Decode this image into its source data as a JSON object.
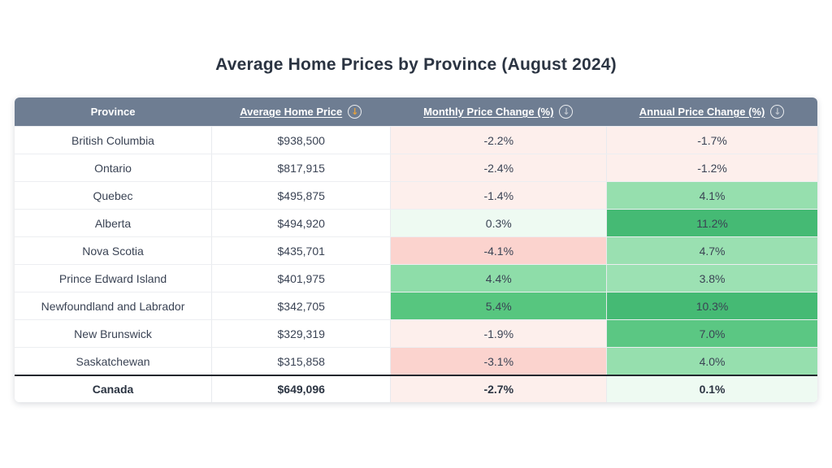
{
  "title": "Average Home Prices by Province (August 2024)",
  "table": {
    "columns": [
      {
        "label": "Province",
        "sortable": false
      },
      {
        "label": "Average Home Price",
        "sortable": true,
        "sort_icon": "circled-down-arrow",
        "sort_active": true,
        "sort_arrow_color": "#e7a23c"
      },
      {
        "label": "Monthly Price Change (%)",
        "sortable": true,
        "sort_icon": "circled-down-arrow",
        "sort_active": false
      },
      {
        "label": "Annual Price Change (%)",
        "sortable": true,
        "sort_icon": "circled-down-arrow",
        "sort_active": false
      }
    ],
    "sort_icon_glyph": "↓",
    "rows": [
      {
        "province": "British Columbia",
        "price": "$938,500",
        "monthly": "-2.2%",
        "annual": "-1.7%",
        "monthly_bg": "#fdefec",
        "annual_bg": "#fdefec"
      },
      {
        "province": "Ontario",
        "price": "$817,915",
        "monthly": "-2.4%",
        "annual": "-1.2%",
        "monthly_bg": "#fdefec",
        "annual_bg": "#fdefec"
      },
      {
        "province": "Quebec",
        "price": "$495,875",
        "monthly": "-1.4%",
        "annual": "4.1%",
        "monthly_bg": "#fdefec",
        "annual_bg": "#96dfae"
      },
      {
        "province": "Alberta",
        "price": "$494,920",
        "monthly": "0.3%",
        "annual": "11.2%",
        "monthly_bg": "#eefaf2",
        "annual_bg": "#45ba74"
      },
      {
        "province": "Nova Scotia",
        "price": "$435,701",
        "monthly": "-4.1%",
        "annual": "4.7%",
        "monthly_bg": "#fbd3ce",
        "annual_bg": "#9ae0b1"
      },
      {
        "province": "Prince Edward Island",
        "price": "$401,975",
        "monthly": "4.4%",
        "annual": "3.8%",
        "monthly_bg": "#8edda9",
        "annual_bg": "#9ce1b3"
      },
      {
        "province": "Newfoundland and Labrador",
        "price": "$342,705",
        "monthly": "5.4%",
        "annual": "10.3%",
        "monthly_bg": "#57c67f",
        "annual_bg": "#45ba74"
      },
      {
        "province": "New Brunswick",
        "price": "$329,319",
        "monthly": "-1.9%",
        "annual": "7.0%",
        "monthly_bg": "#fdefec",
        "annual_bg": "#5bc783"
      },
      {
        "province": "Saskatchewan",
        "price": "$315,858",
        "monthly": "-3.1%",
        "annual": "4.0%",
        "monthly_bg": "#fbd3ce",
        "annual_bg": "#96dfae"
      }
    ],
    "footer": {
      "province": "Canada",
      "price": "$649,096",
      "monthly": "-2.7%",
      "annual": "0.1%",
      "monthly_bg": "#fdefec",
      "annual_bg": "#eefaf2"
    }
  },
  "colors": {
    "header_bg": "#6e7d92",
    "header_text": "#ffffff",
    "active_sort_arrow": "#e7a23c",
    "negative_light": "#fdefec",
    "negative_strong": "#fbd3ce",
    "positive_faint": "#eefaf2",
    "positive_light": "#96dfae",
    "positive_medium": "#5bc783",
    "positive_strong": "#45ba74",
    "title_text": "#2b3442",
    "cell_text": "#3a4354",
    "footer_divider": "#22272e"
  },
  "chart_data": {
    "type": "table",
    "title": "Average Home Prices by Province (August 2024)",
    "columns": [
      "Province",
      "Average Home Price",
      "Monthly Price Change (%)",
      "Annual Price Change (%)"
    ],
    "rows": [
      [
        "British Columbia",
        938500,
        -2.2,
        -1.7
      ],
      [
        "Ontario",
        817915,
        -2.4,
        -1.2
      ],
      [
        "Quebec",
        495875,
        -1.4,
        4.1
      ],
      [
        "Alberta",
        494920,
        0.3,
        11.2
      ],
      [
        "Nova Scotia",
        435701,
        -4.1,
        4.7
      ],
      [
        "Prince Edward Island",
        401975,
        4.4,
        3.8
      ],
      [
        "Newfoundland and Labrador",
        342705,
        5.4,
        10.3
      ],
      [
        "New Brunswick",
        329319,
        -1.9,
        7.0
      ],
      [
        "Saskatchewan",
        315858,
        -3.1,
        4.0
      ],
      [
        "Canada",
        649096,
        -2.7,
        0.1
      ]
    ],
    "notes": "Sorted descending by Average Home Price; change cells shaded red (negative) to green (positive) by magnitude; Canada is a summary footer row"
  }
}
